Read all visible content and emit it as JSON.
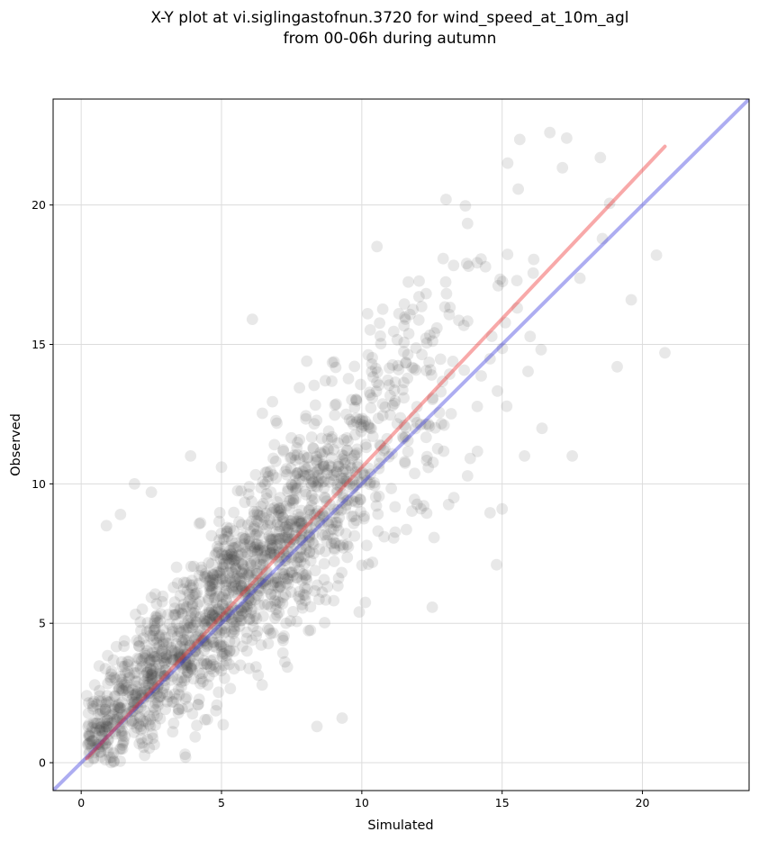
{
  "chart_data": {
    "type": "scatter",
    "title_lines": [
      "X-Y plot at vi.siglingastofnun.3720 for wind_speed_at_10m_agl",
      "from 00-06h during autumn"
    ],
    "xlabel": "Simulated",
    "ylabel": "Observed",
    "xlim": [
      -1,
      23.8
    ],
    "ylim": [
      -1,
      23.8
    ],
    "xticks": [
      0,
      5,
      10,
      15,
      20
    ],
    "yticks": [
      0,
      5,
      10,
      15,
      20
    ],
    "grid": true,
    "point_color": "#444444",
    "identity_line": {
      "color": "#3333dd",
      "from": [
        -1,
        -1
      ],
      "to": [
        23.8,
        23.8
      ]
    },
    "fit_line": {
      "color": "#ee3333",
      "from": [
        0.2,
        0.15
      ],
      "to": [
        20.8,
        22.1
      ]
    },
    "notable_points": [
      [
        0.9,
        8.5
      ],
      [
        1.4,
        8.9
      ],
      [
        1.9,
        10.0
      ],
      [
        2.5,
        9.7
      ],
      [
        3.9,
        11.0
      ],
      [
        6.1,
        15.9
      ],
      [
        8.4,
        1.3
      ],
      [
        9.3,
        1.6
      ],
      [
        13.0,
        20.2
      ],
      [
        15.2,
        21.5
      ],
      [
        16.7,
        22.6
      ],
      [
        17.3,
        22.4
      ],
      [
        18.5,
        21.7
      ],
      [
        20.5,
        18.2
      ],
      [
        20.8,
        14.7
      ],
      [
        19.6,
        16.6
      ],
      [
        19.1,
        14.2
      ],
      [
        17.5,
        11.0
      ],
      [
        15.8,
        11.0
      ],
      [
        15.0,
        9.1
      ],
      [
        14.8,
        7.1
      ],
      [
        0.2,
        2.4
      ],
      [
        1.1,
        0.2
      ],
      [
        3.7,
        0.3
      ],
      [
        5.0,
        10.6
      ]
    ]
  }
}
